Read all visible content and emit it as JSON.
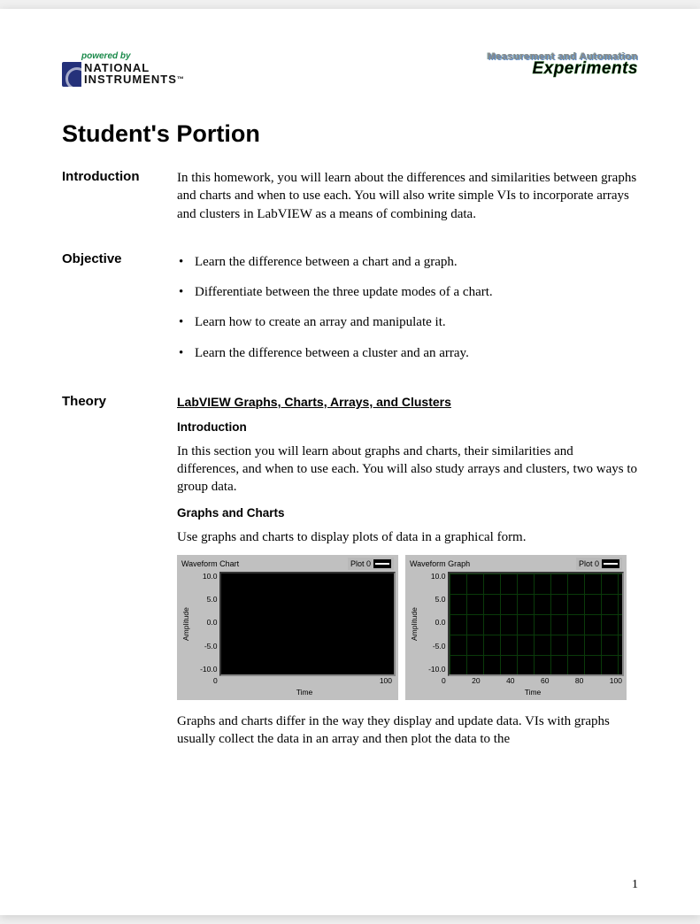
{
  "header": {
    "powered_by": "powered by",
    "brand_line1": "NATIONAL",
    "brand_line2": "INSTRUMENTS",
    "tm": "™",
    "right_line1": "Measurement and Automation",
    "right_line2": "Experiments",
    "brand_color": "#25317a",
    "powered_color": "#1a8a4a"
  },
  "main_title": "Student's Portion",
  "sections": {
    "intro_heading": "Introduction",
    "intro_text": "In this homework, you will learn about the differences and similarities between graphs and charts and when to use each.  You will also write simple VIs to incorporate arrays and clusters in LabVIEW as a means of combining data.",
    "objective_heading": "Objective",
    "objective_items": [
      "Learn the difference between a chart and a graph.",
      "Differentiate between the three update modes of a chart.",
      "Learn how to create an array and manipulate it.",
      "Learn the difference between a cluster and an array."
    ],
    "theory_heading": "Theory",
    "theory_sub1": "LabVIEW Graphs, Charts, Arrays, and Clusters",
    "theory_intro_h": "Introduction",
    "theory_intro_text": "In this section you will learn about graphs and charts, their similarities and differences, and when to use each.  You will also study arrays and clusters, two ways to group data.",
    "theory_gc_h": "Graphs and Charts",
    "theory_gc_text": "Use graphs and charts to display plots of data in a graphical form.",
    "theory_gc_foot": "Graphs and charts differ in the way they display and update data. VIs with graphs usually collect the data in an array and then plot the data to the"
  },
  "charts": {
    "left": {
      "title": "Waveform Chart",
      "plot_label": "Plot 0",
      "y_ticks": [
        "10.0",
        "5.0",
        "0.0",
        "-5.0",
        "-10.0"
      ],
      "x_ticks": [
        "0",
        "100"
      ],
      "y_label": "Amplitude",
      "x_label": "Time",
      "bg": "black"
    },
    "right": {
      "title": "Waveform Graph",
      "plot_label": "Plot 0",
      "y_ticks": [
        "10.0",
        "5.0",
        "0.0",
        "-5.0",
        "-10.0"
      ],
      "x_ticks": [
        "0",
        "20",
        "40",
        "60",
        "80",
        "100"
      ],
      "y_label": "Amplitude",
      "x_label": "Time",
      "bg": "grid",
      "grid_color": "#0a3a0a"
    }
  },
  "page_number": "1"
}
